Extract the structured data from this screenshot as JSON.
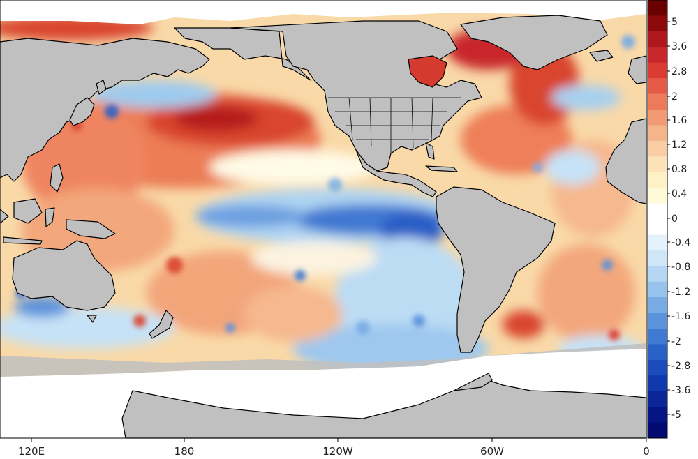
{
  "map": {
    "type": "sea-surface-temperature-anomaly",
    "x_axis_labels": [
      "120E",
      "180",
      "120W",
      "60W",
      "0"
    ],
    "colorbar": {
      "labels": [
        "5",
        "3.6",
        "2.8",
        "2",
        "1.6",
        "1.2",
        "0.8",
        "0.4",
        "0",
        "-0.4",
        "-0.8",
        "-1.2",
        "-1.6",
        "-2",
        "-2.8",
        "-3.6",
        "-5"
      ],
      "colors": [
        "#6b0000",
        "#8e0a0a",
        "#b0171d",
        "#c8272b",
        "#da3b33",
        "#e55a46",
        "#ed7b5b",
        "#f29a73",
        "#f6b48b",
        "#f9cda3",
        "#fce2b8",
        "#fef1c6",
        "#fffbd8",
        "#ffffff",
        "#ffffff",
        "#e4f3fb",
        "#cfe6f7",
        "#b5d6f2",
        "#97c2ec",
        "#78abe4",
        "#5a92dc",
        "#3e7ad1",
        "#2962c7",
        "#1a4cbc",
        "#0f38ad",
        "#0a2699",
        "#061584",
        "#030a70"
      ]
    },
    "land_color": "#c0c0c0",
    "ocean_missing_color": "#ffffff"
  }
}
